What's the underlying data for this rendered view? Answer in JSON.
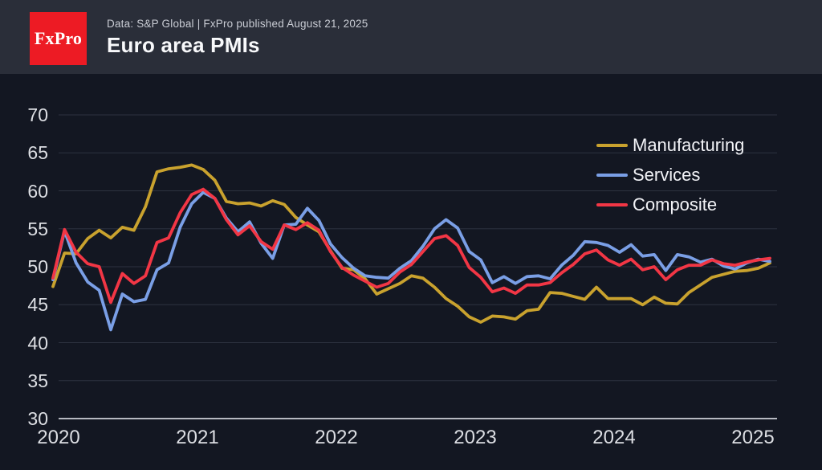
{
  "header": {
    "logo_text": "FxPro",
    "caption": "Data: S&P Global | FxPro published August 21, 2025",
    "title": "Euro area PMIs"
  },
  "colors": {
    "background": "#131722",
    "header_band": "#2a2e39",
    "logo_red": "#ed1b24",
    "grid": "#2d3240",
    "axis_line": "#b6b9c1",
    "axis_text": "#dcdee3",
    "legend_text": "#f2f3f7"
  },
  "chart_data": {
    "type": "line",
    "title": "Euro area PMIs",
    "frequency": "monthly",
    "start_month": "2020-06",
    "end_month": "2025-08",
    "ylim": [
      30,
      72
    ],
    "y_ticks": [
      30,
      35,
      40,
      45,
      50,
      55,
      60,
      65,
      70
    ],
    "x_tick_labels": [
      "2020",
      "2021",
      "2022",
      "2023",
      "2024",
      "2025"
    ],
    "grid": "horizontal",
    "legend_position": "top-right",
    "series": [
      {
        "name": "Manufacturing",
        "color": "#c9a22e",
        "values": [
          47.4,
          51.8,
          51.7,
          53.7,
          54.8,
          53.8,
          55.2,
          54.8,
          57.9,
          62.5,
          62.9,
          63.1,
          63.4,
          62.8,
          61.4,
          58.6,
          58.3,
          58.4,
          58.0,
          58.7,
          58.2,
          56.5,
          55.5,
          54.6,
          52.1,
          49.8,
          49.6,
          48.4,
          46.4,
          47.1,
          47.8,
          48.8,
          48.5,
          47.3,
          45.8,
          44.8,
          43.4,
          42.7,
          43.5,
          43.4,
          43.1,
          44.2,
          44.4,
          46.6,
          46.5,
          46.1,
          45.7,
          47.3,
          45.8,
          45.8,
          45.8,
          45.0,
          46.0,
          45.2,
          45.1,
          46.6,
          47.6,
          48.6,
          49.0,
          49.4,
          49.5,
          49.8,
          50.5
        ]
      },
      {
        "name": "Services",
        "color": "#7a9fe6",
        "values": [
          48.3,
          54.7,
          50.5,
          48.0,
          46.9,
          41.7,
          46.4,
          45.4,
          45.7,
          49.6,
          50.5,
          55.2,
          58.3,
          59.8,
          59.0,
          56.4,
          54.6,
          55.9,
          53.1,
          51.1,
          55.5,
          55.6,
          57.7,
          56.1,
          53.0,
          51.2,
          49.8,
          48.8,
          48.6,
          48.5,
          49.8,
          50.8,
          52.7,
          55.0,
          56.2,
          55.1,
          52.0,
          50.9,
          47.9,
          48.7,
          47.8,
          48.7,
          48.8,
          48.4,
          50.2,
          51.5,
          53.3,
          53.2,
          52.8,
          51.9,
          52.9,
          51.4,
          51.6,
          49.5,
          51.6,
          51.3,
          50.6,
          51.0,
          50.1,
          49.7,
          50.5,
          51.0,
          50.7
        ]
      },
      {
        "name": "Composite",
        "color": "#f23645",
        "values": [
          48.5,
          54.9,
          51.9,
          50.4,
          50.0,
          45.3,
          49.1,
          47.8,
          48.8,
          53.2,
          53.8,
          57.1,
          59.5,
          60.2,
          59.0,
          56.2,
          54.2,
          55.4,
          53.3,
          52.3,
          55.5,
          54.9,
          55.8,
          54.8,
          52.0,
          49.9,
          48.9,
          48.1,
          47.3,
          47.8,
          49.3,
          50.3,
          52.0,
          53.7,
          54.1,
          52.8,
          49.9,
          48.6,
          46.7,
          47.2,
          46.5,
          47.6,
          47.6,
          47.9,
          49.2,
          50.3,
          51.7,
          52.2,
          50.9,
          50.2,
          51.0,
          49.6,
          50.0,
          48.3,
          49.6,
          50.2,
          50.2,
          50.9,
          50.4,
          50.2,
          50.6,
          50.9,
          51.1
        ]
      }
    ]
  }
}
